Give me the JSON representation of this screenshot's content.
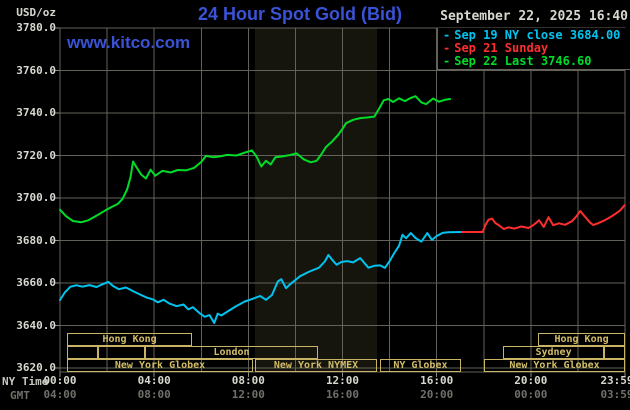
{
  "header": {
    "unit": "USD/oz",
    "title": "24 Hour Spot Gold (Bid)",
    "datetime": "September 22, 2025 16:40",
    "watermark": "www.kitco.com"
  },
  "legend": {
    "items": [
      {
        "dash": "-",
        "label": "Sep 19 NY close 3684.00",
        "color": "#00c4f0"
      },
      {
        "dash": "-",
        "label": "Sep 21 Sunday",
        "color": "#ff2e2e"
      },
      {
        "dash": "-",
        "label": "Sep 22 Last 3746.60",
        "color": "#00dc28"
      }
    ]
  },
  "axes": {
    "ny_label": "NY Time",
    "gmt_label": "GMT",
    "y_labels": [
      "3780.0",
      "3760.0",
      "3740.0",
      "3720.0",
      "3700.0",
      "3680.0",
      "3660.0",
      "3640.0",
      "3620.0"
    ],
    "ny_times": [
      "00:00",
      "04:00",
      "08:00",
      "12:00",
      "16:00",
      "20:00",
      "23:59"
    ],
    "gmt_times": [
      "04:00",
      "08:00",
      "12:00",
      "16:00",
      "20:00",
      "00:00",
      "03:59"
    ]
  },
  "sessions": {
    "rows": [
      {
        "row": 1,
        "start_h": 0.3,
        "end_h": 5.61,
        "label": "Hong Kong"
      },
      {
        "row": 1,
        "start_h": 20.31,
        "end_h": 24.0,
        "label": "Hong Kong"
      },
      {
        "row": 2,
        "start_h": 0.3,
        "end_h": 1.61,
        "label": ""
      },
      {
        "row": 2,
        "start_h": 1.61,
        "end_h": 3.61,
        "label": ""
      },
      {
        "row": 2,
        "start_h": 3.61,
        "end_h": 10.96,
        "label": "London"
      },
      {
        "row": 2,
        "start_h": 18.82,
        "end_h": 23.11,
        "label": "Sydney"
      },
      {
        "row": 2,
        "start_h": 23.11,
        "end_h": 24.0,
        "label": ""
      },
      {
        "row": 3,
        "start_h": 0.3,
        "end_h": 8.2,
        "label": "New York Globex"
      },
      {
        "row": 3,
        "start_h": 8.28,
        "end_h": 13.47,
        "label": "New York NYMEX"
      },
      {
        "row": 3,
        "start_h": 13.59,
        "end_h": 17.03,
        "label": "NY Globex"
      },
      {
        "row": 3,
        "start_h": 18.01,
        "end_h": 24.0,
        "label": "New York Globex"
      }
    ]
  },
  "colors": {
    "background": "#000000",
    "grid": "#62625a",
    "plot_border": "#62625a",
    "nymex_band": "#15150d",
    "session_khaki": "#c8b464",
    "title_blue": "#3a53d6",
    "axis_text": "#d8d8d0",
    "gmt_text": "#70706a",
    "cyan_line": "#00c4f0",
    "red_line": "#ff2e2e",
    "green_line": "#00dc28"
  },
  "chart_data": {
    "type": "line",
    "title": "24 Hour Spot Gold (Bid)",
    "xlabel": "NY Time (hours)",
    "ylabel": "USD/oz",
    "xlim": [
      0,
      24
    ],
    "ylim": [
      3620,
      3780
    ],
    "grid": true,
    "y_tick_step": 20,
    "x_tick_step_hours": 2,
    "nymex_band_hours": [
      8.28,
      13.47
    ],
    "legend_position": "top-right",
    "series": [
      {
        "name": "Sep 19 NY close 3684.00",
        "color": "#00c4f0",
        "points": [
          [
            0,
            3652
          ],
          [
            0.2,
            3655.5
          ],
          [
            0.45,
            3658.3
          ],
          [
            0.7,
            3658.9
          ],
          [
            0.95,
            3658.3
          ],
          [
            1.25,
            3659
          ],
          [
            1.55,
            3658.1
          ],
          [
            1.8,
            3659.4
          ],
          [
            2.05,
            3660.5
          ],
          [
            2.25,
            3658.6
          ],
          [
            2.5,
            3657.1
          ],
          [
            2.8,
            3657.9
          ],
          [
            3.1,
            3656.2
          ],
          [
            3.4,
            3654.6
          ],
          [
            3.7,
            3653.1
          ],
          [
            3.95,
            3652.3
          ],
          [
            4.15,
            3650.9
          ],
          [
            4.4,
            3652.1
          ],
          [
            4.65,
            3650.3
          ],
          [
            4.95,
            3649.1
          ],
          [
            5.25,
            3649.9
          ],
          [
            5.45,
            3647.6
          ],
          [
            5.65,
            3648.6
          ],
          [
            5.95,
            3645.6
          ],
          [
            6.15,
            3644.1
          ],
          [
            6.35,
            3644.9
          ],
          [
            6.55,
            3641.2
          ],
          [
            6.7,
            3645.6
          ],
          [
            6.85,
            3644.7
          ],
          [
            7.05,
            3646.1
          ],
          [
            7.45,
            3648.9
          ],
          [
            7.85,
            3651.3
          ],
          [
            8.2,
            3652.6
          ],
          [
            8.5,
            3653.9
          ],
          [
            8.75,
            3652.1
          ],
          [
            9.0,
            3654.3
          ],
          [
            9.25,
            3660.7
          ],
          [
            9.4,
            3661.8
          ],
          [
            9.6,
            3657.6
          ],
          [
            9.85,
            3660.1
          ],
          [
            10.2,
            3663.2
          ],
          [
            10.6,
            3665.4
          ],
          [
            11.0,
            3667.2
          ],
          [
            11.25,
            3670.1
          ],
          [
            11.4,
            3673.2
          ],
          [
            11.6,
            3670.4
          ],
          [
            11.75,
            3668.6
          ],
          [
            11.95,
            3669.9
          ],
          [
            12.2,
            3670.3
          ],
          [
            12.45,
            3669.7
          ],
          [
            12.75,
            3671.7
          ],
          [
            13.1,
            3667.2
          ],
          [
            13.35,
            3668.1
          ],
          [
            13.6,
            3668.3
          ],
          [
            13.8,
            3667.1
          ],
          [
            14.0,
            3670.3
          ],
          [
            14.2,
            3674.1
          ],
          [
            14.4,
            3677.5
          ],
          [
            14.55,
            3682.7
          ],
          [
            14.7,
            3681.1
          ],
          [
            14.9,
            3683.5
          ],
          [
            15.1,
            3681.2
          ],
          [
            15.35,
            3679.5
          ],
          [
            15.6,
            3683.5
          ],
          [
            15.8,
            3680.3
          ],
          [
            16.0,
            3682.1
          ],
          [
            16.25,
            3683.6
          ],
          [
            16.5,
            3683.9
          ],
          [
            17.07,
            3684
          ]
        ]
      },
      {
        "name": "Sep 21 Sunday",
        "color": "#ff2e2e",
        "points": [
          [
            17.07,
            3684
          ],
          [
            17.95,
            3684
          ],
          [
            18.08,
            3687.5
          ],
          [
            18.2,
            3689.8
          ],
          [
            18.35,
            3690.3
          ],
          [
            18.5,
            3688.2
          ],
          [
            18.65,
            3687.1
          ],
          [
            18.85,
            3685.4
          ],
          [
            19.05,
            3686.2
          ],
          [
            19.3,
            3685.6
          ],
          [
            19.6,
            3686.6
          ],
          [
            19.9,
            3685.9
          ],
          [
            20.1,
            3687.2
          ],
          [
            20.35,
            3689.5
          ],
          [
            20.55,
            3686.4
          ],
          [
            20.75,
            3690.9
          ],
          [
            20.95,
            3687.2
          ],
          [
            21.2,
            3688.1
          ],
          [
            21.45,
            3687.4
          ],
          [
            21.75,
            3689.1
          ],
          [
            21.95,
            3691.6
          ],
          [
            22.1,
            3693.9
          ],
          [
            22.3,
            3691.2
          ],
          [
            22.5,
            3688.6
          ],
          [
            22.65,
            3687.3
          ],
          [
            22.85,
            3688.1
          ],
          [
            23.1,
            3689.3
          ],
          [
            23.35,
            3690.8
          ],
          [
            23.6,
            3692.6
          ],
          [
            23.8,
            3694.2
          ],
          [
            23.98,
            3696.6
          ]
        ]
      },
      {
        "name": "Sep 22 Last 3746.60",
        "color": "#00dc28",
        "points": [
          [
            0,
            3694.5
          ],
          [
            0.25,
            3691.5
          ],
          [
            0.55,
            3689.2
          ],
          [
            0.9,
            3688.6
          ],
          [
            1.2,
            3689.5
          ],
          [
            1.6,
            3692
          ],
          [
            1.9,
            3694
          ],
          [
            2.2,
            3695.8
          ],
          [
            2.45,
            3697.2
          ],
          [
            2.65,
            3699.5
          ],
          [
            2.85,
            3704
          ],
          [
            3.0,
            3710
          ],
          [
            3.1,
            3717.2
          ],
          [
            3.25,
            3714.5
          ],
          [
            3.45,
            3711
          ],
          [
            3.65,
            3709.2
          ],
          [
            3.85,
            3713.3
          ],
          [
            4.05,
            3710.5
          ],
          [
            4.35,
            3712.8
          ],
          [
            4.7,
            3712
          ],
          [
            5.0,
            3713.2
          ],
          [
            5.35,
            3713
          ],
          [
            5.7,
            3714.2
          ],
          [
            6.0,
            3717
          ],
          [
            6.2,
            3719.8
          ],
          [
            6.5,
            3719.2
          ],
          [
            6.8,
            3719.6
          ],
          [
            7.1,
            3720.3
          ],
          [
            7.5,
            3720
          ],
          [
            7.8,
            3721.2
          ],
          [
            8.15,
            3722.4
          ],
          [
            8.35,
            3719.5
          ],
          [
            8.55,
            3714.8
          ],
          [
            8.75,
            3717.5
          ],
          [
            8.95,
            3715.8
          ],
          [
            9.15,
            3719.2
          ],
          [
            9.45,
            3719.6
          ],
          [
            9.75,
            3720.2
          ],
          [
            10.05,
            3721
          ],
          [
            10.35,
            3718.2
          ],
          [
            10.65,
            3716.8
          ],
          [
            10.9,
            3717.5
          ],
          [
            11.1,
            3720.5
          ],
          [
            11.3,
            3724
          ],
          [
            11.55,
            3726.5
          ],
          [
            11.8,
            3729.5
          ],
          [
            12.0,
            3732.5
          ],
          [
            12.15,
            3735.2
          ],
          [
            12.45,
            3736.8
          ],
          [
            12.75,
            3737.6
          ],
          [
            13.05,
            3737.9
          ],
          [
            13.35,
            3738.3
          ],
          [
            13.55,
            3742
          ],
          [
            13.75,
            3746
          ],
          [
            13.95,
            3746.6
          ],
          [
            14.15,
            3745.2
          ],
          [
            14.4,
            3746.9
          ],
          [
            14.65,
            3745.6
          ],
          [
            14.9,
            3747.1
          ],
          [
            15.1,
            3747.9
          ],
          [
            15.35,
            3745
          ],
          [
            15.55,
            3744.2
          ],
          [
            15.85,
            3746.8
          ],
          [
            16.1,
            3745.3
          ],
          [
            16.35,
            3746.2
          ],
          [
            16.57,
            3746.6
          ]
        ]
      }
    ]
  }
}
